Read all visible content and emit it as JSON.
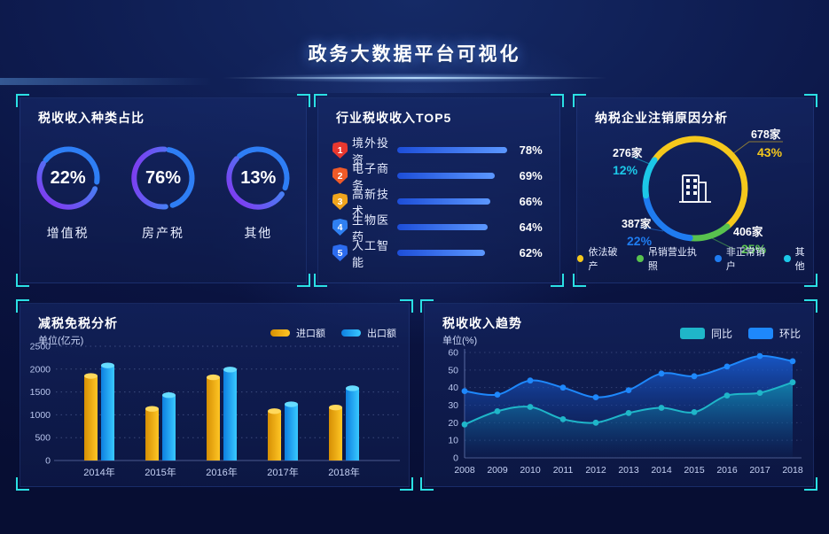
{
  "header": {
    "title": "政务大数据平台可视化"
  },
  "colors": {
    "accent_cyan": "#2be0e4",
    "background": "#0a1340",
    "panel": "#13255f",
    "text_primary": "#ffffff",
    "text_dim": "#c6d2f5"
  },
  "chart_data": [
    {
      "id": "tax_type_share",
      "type": "pie",
      "title": "税收收入种类占比",
      "unit": "%",
      "rings": [
        {
          "label": "增值税",
          "value": 22,
          "value_label": "22%"
        },
        {
          "label": "房产税",
          "value": 76,
          "value_label": "76%"
        },
        {
          "label": "其他",
          "value": 13,
          "value_label": "13%"
        }
      ],
      "ring_colors": {
        "blue": "#2e7ef5",
        "purple": "#8a2ef0",
        "light_blue": "#2f9df5"
      }
    },
    {
      "id": "industry_tax_top5",
      "type": "bar",
      "title": "行业税收收入TOP5",
      "categories": [
        "境外投资",
        "电子商务",
        "高新技术",
        "生物医药",
        "人工智能"
      ],
      "values": [
        78,
        69,
        66,
        64,
        62
      ],
      "value_labels": [
        "78%",
        "69%",
        "66%",
        "64%",
        "62%"
      ],
      "ranks": [
        "1",
        "2",
        "3",
        "4",
        "5"
      ],
      "badge_colors": [
        "#e8382f",
        "#f05a28",
        "#f0a51d",
        "#2f80f2",
        "#2c6cf0"
      ],
      "bar_color_from": "#1d4ed8",
      "bar_color_to": "#5b97ff",
      "xlim": [
        0,
        100
      ]
    },
    {
      "id": "dereg_reason",
      "type": "pie",
      "title": "纳税企业注销原因分析",
      "center_icon": "building-icon",
      "segments": [
        {
          "label": "依法破产",
          "count": "678家",
          "pct": 43,
          "pct_label": "43%",
          "color": "#f5c81c"
        },
        {
          "label": "吊销营业执照",
          "count": "406家",
          "pct": 25,
          "pct_label": "25%",
          "color": "#58c24e"
        },
        {
          "label": "非正常销户",
          "count": "387家",
          "pct": 22,
          "pct_label": "22%",
          "color": "#1f7cf0"
        },
        {
          "label": "其他",
          "count": "276家",
          "pct": 12,
          "pct_label": "12%",
          "color": "#1cc8e8"
        }
      ]
    },
    {
      "id": "tax_relief",
      "type": "bar",
      "title": "减税免税分析",
      "unit_label": "单位(亿元)",
      "categories": [
        "2014年",
        "2015年",
        "2016年",
        "2017年",
        "2018年"
      ],
      "series": [
        {
          "name": "进口额",
          "values": [
            1850,
            1130,
            1820,
            1080,
            1160
          ],
          "color_from": "#d68f04",
          "color_to": "#ffc625",
          "color_top": "#ffd95c"
        },
        {
          "name": "出口额",
          "values": [
            2080,
            1430,
            1990,
            1230,
            1580
          ],
          "color_from": "#0e7fe0",
          "color_to": "#38c8ff",
          "color_top": "#66dcff"
        }
      ],
      "ylim": [
        0,
        2500
      ],
      "yticks": [
        0,
        500,
        1000,
        1500,
        2000,
        2500
      ],
      "grid": "dotted",
      "legend_position": "top-right"
    },
    {
      "id": "tax_trend",
      "type": "area",
      "title": "税收收入趋势",
      "unit_label": "单位(%)",
      "x": [
        "2008",
        "2009",
        "2010",
        "2011",
        "2012",
        "2013",
        "2014",
        "2015",
        "2016",
        "2017",
        "2018"
      ],
      "series": [
        {
          "name": "同比",
          "values": [
            19,
            26.5,
            29,
            22,
            20,
            25.5,
            28.5,
            26,
            35.5,
            37,
            43
          ],
          "line_color": "#1fb6c9",
          "fill_from": "rgba(16,150,175,0.72)",
          "fill_to": "rgba(16,80,140,0.03)"
        },
        {
          "name": "环比",
          "values": [
            38,
            36,
            44,
            40,
            34.5,
            38.5,
            48,
            46.5,
            52,
            58,
            55
          ],
          "line_color": "#1e88fc",
          "fill_from": "rgba(25,95,215,0.85)",
          "fill_to": "rgba(15,40,110,0.05)"
        }
      ],
      "ylim": [
        0,
        60
      ],
      "yticks": [
        0,
        10,
        20,
        30,
        40,
        50,
        60
      ],
      "grid": "dotted",
      "legend_position": "top-right"
    }
  ]
}
